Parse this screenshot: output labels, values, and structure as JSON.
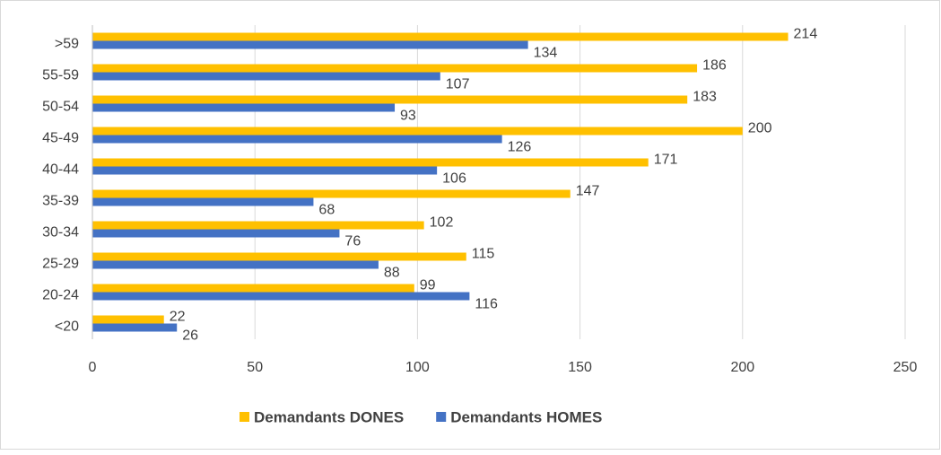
{
  "chart_data": {
    "type": "hbar",
    "categories": [
      ">59",
      "55-59",
      "50-54",
      "45-49",
      "40-44",
      "35-39",
      "30-34",
      "25-29",
      "20-24",
      "<20"
    ],
    "series": [
      {
        "name": "Demandants DONES",
        "color": "#ffc000",
        "values": [
          214,
          186,
          183,
          200,
          171,
          147,
          102,
          115,
          99,
          22
        ]
      },
      {
        "name": "Demandants HOMES",
        "color": "#4472c4",
        "values": [
          134,
          107,
          93,
          126,
          106,
          68,
          76,
          88,
          116,
          26
        ]
      }
    ],
    "xlim": [
      0,
      250
    ],
    "xticks": [
      0,
      50,
      100,
      150,
      200,
      250
    ],
    "grid": true,
    "legend": "bottom"
  }
}
